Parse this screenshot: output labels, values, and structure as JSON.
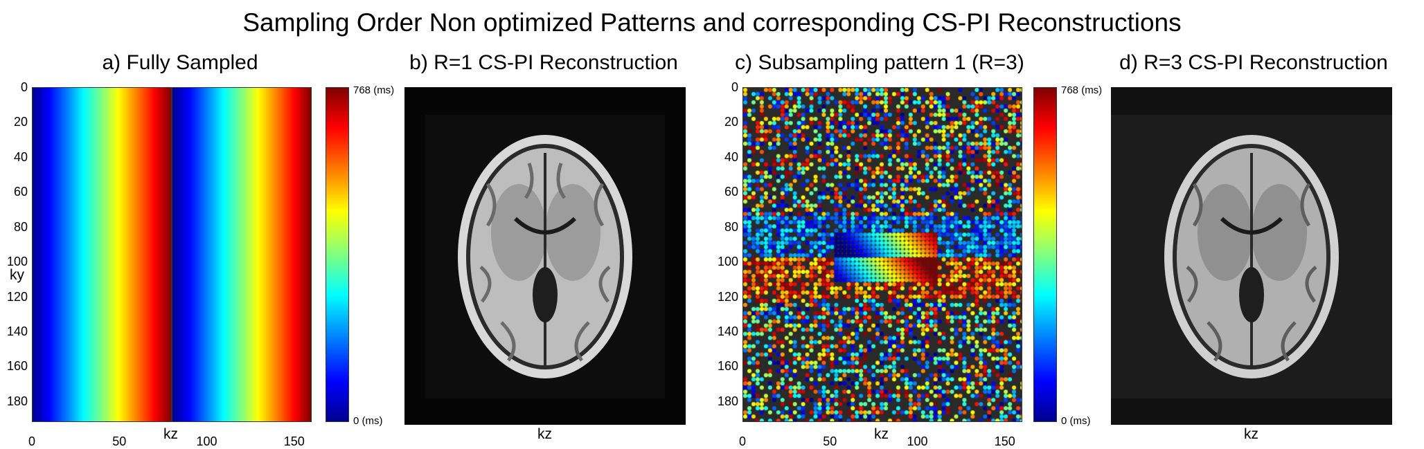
{
  "title": "Sampling Order Non optimized Patterns and corresponding CS-PI Reconstructions",
  "panels": {
    "a": {
      "title": "a) Fully Sampled",
      "xlabel": "kz",
      "ylabel": "ky"
    },
    "b": {
      "title": "b) R=1 CS-PI Reconstruction",
      "xlabel": "kz"
    },
    "c": {
      "title": "c)  Subsampling pattern 1 (R=3)",
      "xlabel": "kz"
    },
    "d": {
      "title": "d) R=3 CS-PI Reconstruction",
      "xlabel": "kz"
    }
  },
  "colorbar": {
    "max_label": "768 (ms)",
    "min_label": "0 (ms)",
    "colormap": "jet"
  },
  "axes": {
    "yticks": [
      "0",
      "20",
      "40",
      "60",
      "80",
      "100",
      "120",
      "140",
      "160",
      "180"
    ],
    "xticks": [
      "0",
      "50",
      "100",
      "150"
    ]
  },
  "chart_data": [
    {
      "type": "heatmap",
      "title": "a) Fully Sampled",
      "xlabel": "kz",
      "ylabel": "ky",
      "xlim": [
        0,
        160
      ],
      "ylim": [
        0,
        192
      ],
      "colorbar_range_ms": [
        0,
        768
      ],
      "description_values": "sampling time increases linearly with kz from 0 to 768 ms over kz 0-80, then repeats over kz 80-160; constant along ky"
    },
    {
      "type": "heatmap",
      "title": "c)  Subsampling pattern 1 (R=3)",
      "xlabel": "kz",
      "ylabel": "ky",
      "xlim": [
        0,
        160
      ],
      "ylim": [
        0,
        192
      ],
      "colorbar_range_ms": [
        0,
        768
      ]
    }
  ]
}
